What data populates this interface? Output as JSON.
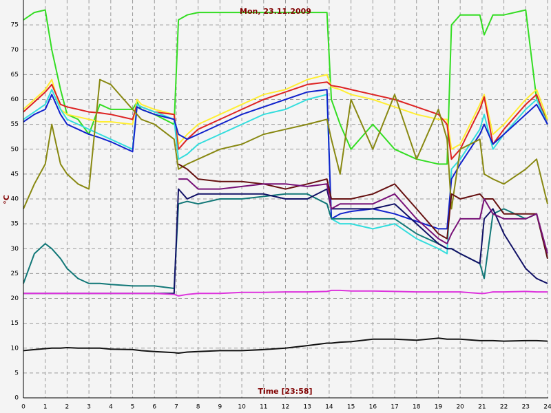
{
  "chart_data": {
    "type": "line",
    "title": "Mon, 23.11.2009",
    "x_label": "Time [23:58]",
    "y_label": "°C",
    "x": [
      0,
      0.5,
      1,
      1.3,
      1.7,
      2,
      2.5,
      3,
      3.5,
      4,
      5,
      5.2,
      5.4,
      6,
      6.9,
      7.1,
      7.5,
      8,
      9,
      10,
      11,
      12,
      13,
      13.9,
      14.1,
      14.5,
      15,
      16,
      17,
      18,
      19,
      19.4,
      19.6,
      20,
      20.9,
      21.1,
      21.5,
      22,
      23,
      23.5,
      24
    ],
    "xlim": [
      0,
      24
    ],
    "xticks": [
      0,
      1,
      2,
      3,
      4,
      5,
      6,
      7,
      8,
      9,
      10,
      11,
      12,
      13,
      14,
      15,
      16,
      17,
      18,
      19,
      20,
      21,
      22,
      23,
      24
    ],
    "ylim": [
      0,
      80
    ],
    "yticks": [
      0,
      5,
      10,
      15,
      20,
      25,
      30,
      35,
      40,
      45,
      50,
      55,
      60,
      65,
      70,
      75
    ],
    "grid": true,
    "series": [
      {
        "color": "#33dd22",
        "values": [
          76,
          77.5,
          78,
          70,
          62,
          57,
          56,
          53,
          59,
          58,
          58,
          59.5,
          58,
          57,
          55,
          76,
          77,
          77.5,
          77.5,
          77.5,
          77.5,
          77.5,
          77.5,
          77.5,
          60,
          55,
          50,
          55,
          50,
          48,
          47,
          47,
          75,
          77,
          77,
          73,
          77,
          77,
          78,
          60,
          56
        ]
      },
      {
        "color": "#ffee33",
        "values": [
          58,
          60,
          62,
          64,
          58,
          57,
          56.5,
          56,
          55.5,
          55.5,
          55,
          60,
          59,
          58,
          57,
          51,
          53,
          55,
          57,
          59,
          61,
          62,
          64,
          65,
          62.5,
          62,
          61,
          60,
          58.5,
          57,
          56,
          56,
          50,
          51,
          59,
          61,
          53,
          55,
          60,
          62,
          56
        ]
      },
      {
        "color": "#dd2222",
        "values": [
          57.5,
          59.5,
          61.5,
          63,
          59,
          58.5,
          58,
          57.5,
          57.3,
          57,
          56,
          59,
          58.5,
          57.5,
          57,
          50,
          52,
          54,
          56,
          58,
          60,
          61.5,
          63,
          63.5,
          62.8,
          62.5,
          62,
          61,
          60,
          58.5,
          57,
          55,
          48,
          50,
          58,
          60.5,
          51,
          54,
          59,
          61,
          55
        ]
      },
      {
        "color": "#33dddd",
        "values": [
          56,
          57.5,
          59,
          62,
          58,
          56,
          55,
          54,
          53,
          52,
          50,
          59,
          58.5,
          57.5,
          56,
          48,
          49,
          51,
          53,
          55,
          57,
          58,
          60,
          61,
          36,
          35,
          35,
          34,
          35,
          32,
          30,
          29,
          46,
          48,
          54,
          57,
          50,
          53,
          58,
          60,
          55
        ]
      },
      {
        "color": "#1122cc",
        "values": [
          55.5,
          57,
          58,
          61,
          57,
          55,
          54,
          53,
          52.3,
          51.5,
          49.5,
          58.5,
          58,
          57,
          56,
          53,
          52,
          53,
          55,
          57,
          58.5,
          60,
          61.5,
          62,
          36,
          37,
          37.5,
          38,
          37,
          35.5,
          34,
          34,
          44,
          47,
          53,
          55,
          51,
          53,
          57,
          59,
          55
        ]
      },
      {
        "color": "#888811",
        "values": [
          38,
          43,
          47,
          55,
          47,
          45,
          43,
          42,
          64,
          63,
          58,
          57,
          56,
          55,
          52,
          46,
          47,
          48,
          50,
          51,
          53,
          54,
          55,
          56,
          52,
          45,
          60,
          50,
          61,
          48,
          58,
          52,
          38,
          50,
          52,
          45,
          44,
          43,
          46,
          48,
          39
        ]
      },
      {
        "color": "#117777",
        "values": [
          23,
          29,
          31,
          30,
          28,
          26,
          24,
          23,
          23,
          22.8,
          22.5,
          22.5,
          22.5,
          22.5,
          22,
          39,
          39.5,
          39,
          40,
          40,
          40.5,
          41,
          41,
          39,
          36,
          36,
          36,
          36,
          36,
          33,
          31,
          30,
          30,
          29,
          27,
          24,
          37,
          38,
          36,
          37,
          28
        ]
      },
      {
        "color": "#111166",
        "values": [
          21,
          21,
          21,
          21,
          21,
          21,
          21,
          21,
          21,
          21,
          21,
          21,
          21,
          21,
          21,
          42,
          40,
          41,
          41,
          41,
          41,
          40,
          40,
          42,
          38,
          38,
          38,
          38,
          39,
          35,
          31,
          30,
          30,
          29,
          27,
          36,
          38,
          33,
          26,
          24,
          23
        ]
      },
      {
        "color": "#661111",
        "values": [
          null,
          null,
          null,
          null,
          null,
          null,
          null,
          null,
          null,
          null,
          null,
          null,
          null,
          null,
          null,
          47,
          46,
          44,
          43.5,
          43.5,
          43,
          42,
          43,
          44,
          40,
          40,
          40,
          41,
          43,
          38,
          33,
          32,
          41,
          40,
          41,
          40,
          40,
          37,
          37,
          37,
          28
        ]
      },
      {
        "color": "#771177",
        "values": [
          null,
          null,
          null,
          null,
          null,
          null,
          null,
          null,
          null,
          null,
          null,
          null,
          null,
          null,
          null,
          44,
          44,
          42,
          42,
          42.5,
          43,
          43,
          42.5,
          43,
          38,
          39,
          39,
          39,
          41,
          36,
          32,
          31,
          33,
          36,
          36,
          40,
          37,
          36,
          36,
          37,
          29
        ]
      },
      {
        "color": "#dd33dd",
        "values": [
          21,
          21,
          21,
          21,
          21,
          21,
          21,
          21,
          21,
          21,
          21,
          21,
          21,
          21,
          20.8,
          20.5,
          20.8,
          21,
          21,
          21.2,
          21.2,
          21.3,
          21.3,
          21.4,
          21.6,
          21.6,
          21.5,
          21.5,
          21.4,
          21.3,
          21.3,
          21.3,
          21.3,
          21.3,
          21,
          21,
          21.3,
          21.3,
          21.4,
          21.3,
          21.3
        ]
      },
      {
        "color": "#111111",
        "values": [
          9.5,
          9.7,
          9.9,
          10,
          10,
          10.1,
          10,
          10,
          10,
          9.8,
          9.7,
          9.6,
          9.5,
          9.3,
          9.1,
          9,
          9.2,
          9.3,
          9.5,
          9.5,
          9.7,
          10,
          10.5,
          11,
          11,
          11.2,
          11.3,
          11.8,
          11.8,
          11.6,
          12,
          11.8,
          11.8,
          11.8,
          11.5,
          11.5,
          11.5,
          11.4,
          11.5,
          11.5,
          11.4
        ]
      }
    ]
  }
}
